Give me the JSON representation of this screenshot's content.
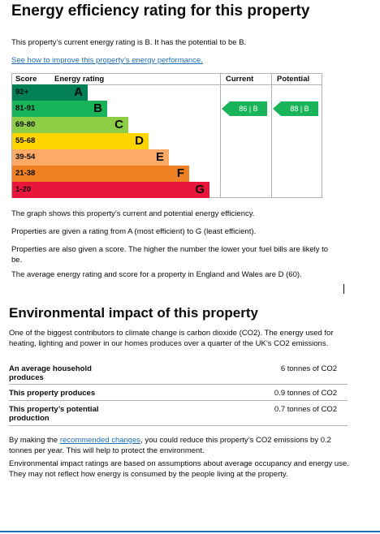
{
  "energy": {
    "title": "Energy efficiency rating for this property",
    "intro": "This property’s current energy rating is B. It has the potential to be B.",
    "improve_link": "See how to improve this property’s energy performance.",
    "graph": {
      "headers": {
        "score": "Score",
        "rating": "Energy rating",
        "current": "Current",
        "potential": "Potential"
      },
      "bands": [
        {
          "range": "92+",
          "letter": "A",
          "color": "#008054"
        },
        {
          "range": "81-91",
          "letter": "B",
          "color": "#19b459"
        },
        {
          "range": "69-80",
          "letter": "C",
          "color": "#8dce46"
        },
        {
          "range": "55-68",
          "letter": "D",
          "color": "#ffd500"
        },
        {
          "range": "39-54",
          "letter": "E",
          "color": "#fcaa65"
        },
        {
          "range": "21-38",
          "letter": "F",
          "color": "#ef8023"
        },
        {
          "range": "1-20",
          "letter": "G",
          "color": "#e9153b"
        }
      ],
      "current": {
        "label": "86 | B",
        "score": 86,
        "band": "B",
        "color": "#19b459"
      },
      "potential": {
        "label": "88 | B",
        "score": 88,
        "band": "B",
        "color": "#19b459"
      }
    },
    "notes": [
      "The graph shows this property’s current and potential energy efficiency.",
      "Properties are given a rating from A (most efficient) to G (least efficient).",
      "Properties are also given a score. The higher the number the lower your fuel bills are likely to be.",
      "The average energy rating and score for a property in England and Wales are D (60)."
    ]
  },
  "environment": {
    "title": "Environmental impact of this property",
    "intro": "One of the biggest contributors to climate change is carbon dioxide (CO2). The energy used for heating, lighting and power in our homes produces over a quarter of the UK’s CO2 emissions.",
    "rows": [
      {
        "key": "An average household produces",
        "value": "6 tonnes of CO2"
      },
      {
        "key": "This property produces",
        "value": "0.9 tonnes of CO2"
      },
      {
        "key": "This property’s potential production",
        "value": "0.7 tonnes of CO2"
      }
    ],
    "changes_pre": "By making the ",
    "changes_link": "recommended changes",
    "changes_post": ", you could reduce this property’s CO2 emissions by 0.2 tonnes per year. This will help to protect the environment.",
    "disclaimer": "Environmental impact ratings are based on assumptions about average occupancy and energy use. They may not reflect how energy is consumed by the people living at the property."
  }
}
